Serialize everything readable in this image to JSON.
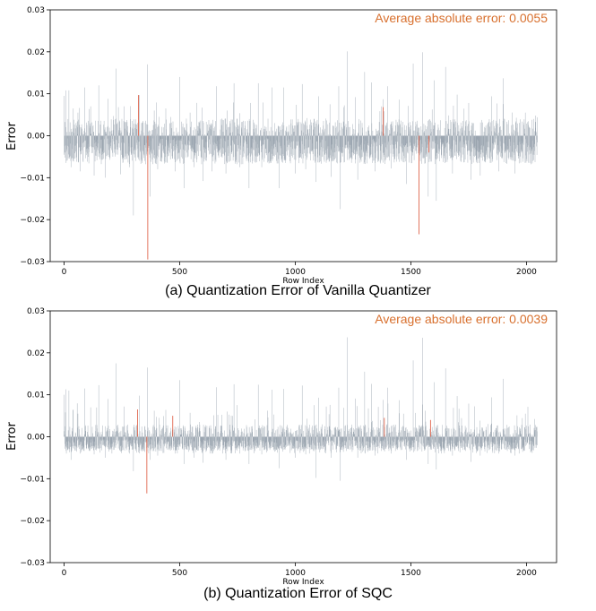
{
  "colors": {
    "bar": "#8d9aa6",
    "outlier": "#e0674f",
    "annotation": "#d8702e",
    "axis": "#000000"
  },
  "chart_data": [
    {
      "type": "bar",
      "caption": "(a) Quantization Error of Vanilla Quantizer",
      "xlabel": "Row Index",
      "ylabel": "Error",
      "annotation": "Average absolute error: 0.0055",
      "xlim": [
        -60,
        2130
      ],
      "ylim": [
        -0.03,
        0.03
      ],
      "xticks": [
        0,
        500,
        1000,
        1500,
        2000
      ],
      "xtick_labels": [
        "0",
        "500",
        "1000",
        "1500",
        "2000"
      ],
      "yticks": [
        -0.03,
        -0.02,
        -0.01,
        0.0,
        0.01,
        0.02,
        0.03
      ],
      "ytick_labels": [
        "−0.03",
        "−0.02",
        "−0.01",
        "0.00",
        "0.01",
        "0.02",
        "0.03"
      ],
      "grid": false,
      "n_rows": 2048,
      "series": [
        {
          "name": "typical",
          "x": [
            0,
            8,
            21,
            40,
            60,
            90,
            115,
            150,
            190,
            224,
            260,
            300,
            325,
            360,
            390,
            412,
            440,
            500,
            545,
            600,
            640,
            660,
            705,
            735,
            760,
            800,
            840,
            900,
            950,
            1000,
            1030,
            1050,
            1100,
            1150,
            1188,
            1210,
            1225,
            1260,
            1300,
            1330,
            1380,
            1400,
            1450,
            1510,
            1550,
            1600,
            1650,
            1680,
            1700,
            1750,
            1800,
            1850,
            1900,
            1950,
            1995,
            2040
          ],
          "values": [
            0.0095,
            0.0108,
            0.0108,
            0.0065,
            0.0055,
            0.0115,
            0.007,
            0.012,
            0.0088,
            0.016,
            0.007,
            0.0153,
            0.0097,
            0.017,
            0.006,
            0.0045,
            0.0065,
            0.014,
            0.0055,
            0.0155,
            0.017,
            0.0118,
            0.006,
            0.0125,
            0.0077,
            0.0095,
            0.0125,
            0.0115,
            0.0115,
            0.0075,
            0.0123,
            0.0042,
            0.0094,
            0.0075,
            0.0118,
            0.0068,
            0.0201,
            0.0092,
            0.0152,
            0.0127,
            0.0087,
            0.0118,
            0.0086,
            0.0172,
            0.0199,
            0.0132,
            0.0164,
            0.007,
            0.0098,
            0.0078,
            0.0151,
            0.0094,
            0.0137,
            0.0073,
            0.0055,
            0.0048
          ]
        },
        {
          "name": "negative",
          "x": [
            10,
            30,
            70,
            130,
            178,
            245,
            282,
            300,
            338,
            372,
            405,
            480,
            520,
            562,
            600,
            640,
            700,
            760,
            800,
            855,
            930,
            1000,
            1045,
            1090,
            1155,
            1195,
            1270,
            1345,
            1415,
            1480,
            1575,
            1610,
            1680,
            1760,
            1800,
            1880,
            1950,
            2020
          ],
          "values": [
            -0.006,
            -0.0075,
            -0.0085,
            -0.0095,
            -0.01,
            -0.0092,
            -0.0075,
            -0.019,
            -0.0065,
            -0.0145,
            -0.008,
            -0.0085,
            -0.0125,
            -0.0075,
            -0.0108,
            -0.0085,
            -0.009,
            -0.0075,
            -0.0125,
            -0.0075,
            -0.0125,
            -0.009,
            -0.008,
            -0.011,
            -0.0098,
            -0.0175,
            -0.0105,
            -0.0085,
            -0.0078,
            -0.0115,
            -0.0145,
            -0.0155,
            -0.009,
            -0.0105,
            -0.0095,
            -0.0085,
            -0.009,
            -0.0068
          ]
        },
        {
          "name": "outliers",
          "x": [
            322,
            362,
            1380,
            1535,
            1578
          ],
          "values": [
            0.0097,
            -0.0295,
            0.0068,
            -0.0235,
            -0.004
          ]
        }
      ]
    },
    {
      "type": "bar",
      "caption": "(b) Quantization Error of SQC",
      "xlabel": "Row Index",
      "ylabel": "Error",
      "annotation": "Average absolute error: 0.0039",
      "xlim": [
        -60,
        2130
      ],
      "ylim": [
        -0.03,
        0.03
      ],
      "xticks": [
        0,
        500,
        1000,
        1500,
        2000
      ],
      "xtick_labels": [
        "0",
        "500",
        "1000",
        "1500",
        "2000"
      ],
      "yticks": [
        -0.03,
        -0.02,
        -0.01,
        0.0,
        0.01,
        0.02,
        0.03
      ],
      "ytick_labels": [
        "−0.03",
        "−0.02",
        "−0.01",
        "0.00",
        "0.01",
        "0.02",
        "0.03"
      ],
      "grid": false,
      "n_rows": 2048,
      "series": [
        {
          "name": "typical",
          "x": [
            0,
            8,
            21,
            40,
            60,
            90,
            115,
            150,
            190,
            224,
            260,
            300,
            325,
            360,
            390,
            412,
            440,
            500,
            545,
            600,
            640,
            660,
            705,
            735,
            760,
            800,
            840,
            900,
            950,
            1000,
            1030,
            1050,
            1100,
            1150,
            1188,
            1210,
            1225,
            1260,
            1300,
            1330,
            1380,
            1400,
            1450,
            1510,
            1550,
            1600,
            1650,
            1680,
            1700,
            1750,
            1800,
            1850,
            1900,
            1950,
            1995,
            2040
          ],
          "values": [
            0.01,
            0.0113,
            0.011,
            0.0065,
            0.0055,
            0.0115,
            0.007,
            0.0123,
            0.009,
            0.0175,
            0.0072,
            0.0155,
            0.0098,
            0.0165,
            0.0062,
            0.0045,
            0.0064,
            0.0135,
            0.0057,
            0.0152,
            0.02,
            0.0118,
            0.006,
            0.0125,
            0.0078,
            0.0095,
            0.0124,
            0.0112,
            0.0114,
            0.0077,
            0.0122,
            0.0043,
            0.0093,
            0.0076,
            0.0117,
            0.0069,
            0.0237,
            0.0091,
            0.0155,
            0.0126,
            0.0088,
            0.0117,
            0.0087,
            0.0182,
            0.0236,
            0.013,
            0.0163,
            0.0071,
            0.0097,
            0.0079,
            0.0115,
            0.0094,
            0.0138,
            0.0074,
            0.0055,
            0.0028
          ]
        },
        {
          "name": "negative",
          "x": [
            10,
            30,
            70,
            130,
            178,
            245,
            282,
            300,
            338,
            372,
            405,
            480,
            520,
            562,
            600,
            640,
            700,
            760,
            800,
            855,
            930,
            1000,
            1045,
            1090,
            1155,
            1195,
            1270,
            1345,
            1415,
            1480,
            1575,
            1610,
            1680,
            1760,
            1800,
            1880,
            1950,
            2020
          ],
          "values": [
            -0.004,
            -0.0055,
            -0.004,
            -0.0042,
            -0.005,
            -0.0035,
            -0.004,
            -0.0082,
            -0.0035,
            -0.0055,
            -0.0045,
            -0.004,
            -0.0065,
            -0.005,
            -0.0062,
            -0.004,
            -0.0055,
            -0.004,
            -0.0065,
            -0.0042,
            -0.0075,
            -0.005,
            -0.0042,
            -0.0098,
            -0.005,
            -0.0105,
            -0.005,
            -0.0045,
            -0.004,
            -0.0055,
            -0.0065,
            -0.0078,
            -0.0045,
            -0.006,
            -0.0045,
            -0.004,
            -0.0045,
            -0.0035
          ]
        },
        {
          "name": "outliers",
          "x": [
            318,
            358,
            470,
            1385,
            1585
          ],
          "values": [
            0.0065,
            -0.0135,
            0.005,
            0.0045,
            0.004
          ]
        }
      ]
    }
  ]
}
